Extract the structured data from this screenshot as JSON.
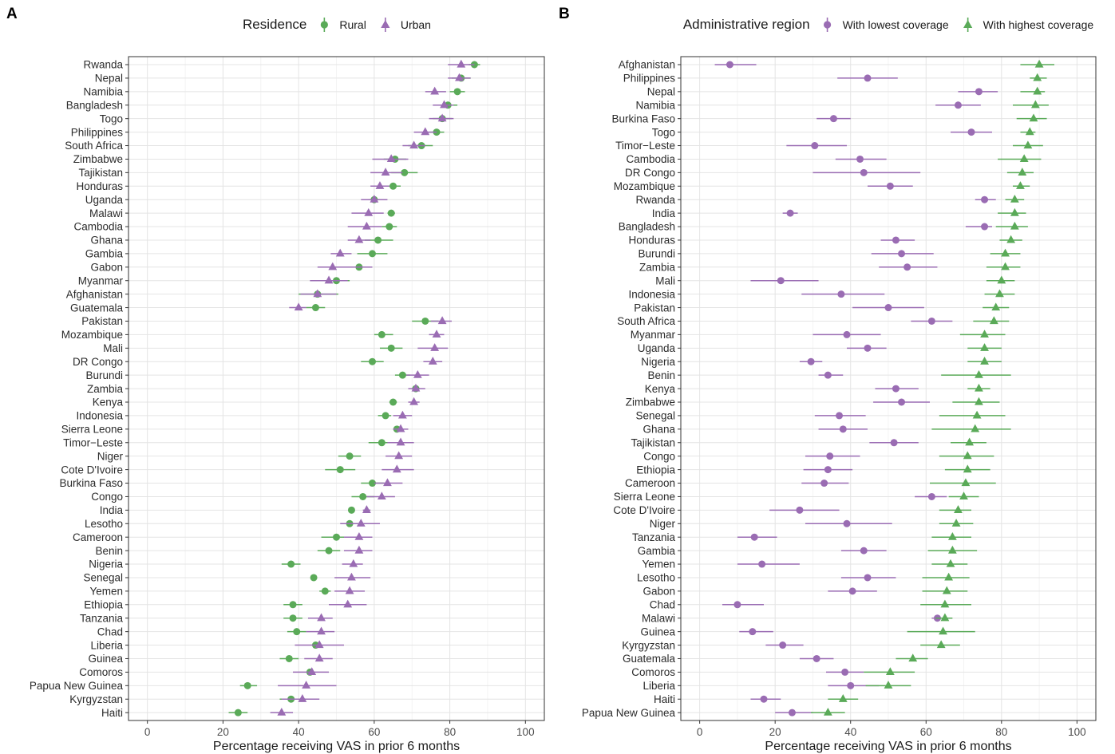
{
  "colors": {
    "green": "#5aaa58",
    "purple": "#9a6cb3"
  },
  "chart_data": [
    {
      "type": "scatter",
      "panel": "A",
      "legend_title": "Residence",
      "legend_placement": "top",
      "xlabel": "Percentage receiving VAS in prior 6 months",
      "xlim": [
        -5,
        105
      ],
      "xticks": [
        0,
        20,
        40,
        60,
        80,
        100
      ],
      "categories": [
        "Rwanda",
        "Nepal",
        "Namibia",
        "Bangladesh",
        "Togo",
        "Philippines",
        "South Africa",
        "Zimbabwe",
        "Tajikistan",
        "Honduras",
        "Uganda",
        "Malawi",
        "Cambodia",
        "Ghana",
        "Gambia",
        "Gabon",
        "Myanmar",
        "Afghanistan",
        "Guatemala",
        "Pakistan",
        "Mozambique",
        "Mali",
        "DR Congo",
        "Burundi",
        "Zambia",
        "Kenya",
        "Indonesia",
        "Sierra Leone",
        "Timor−Leste",
        "Niger",
        "Cote D'Ivoire",
        "Burkina Faso",
        "Congo",
        "India",
        "Lesotho",
        "Cameroon",
        "Benin",
        "Nigeria",
        "Senegal",
        "Yemen",
        "Ethiopia",
        "Tanzania",
        "Chad",
        "Liberia",
        "Guinea",
        "Comoros",
        "Papua New Guinea",
        "Kyrgyzstan",
        "Haiti"
      ],
      "series": [
        {
          "name": "Rural",
          "marker": "circle",
          "color": "#5aaa58",
          "values": [
            86.5,
            83,
            82,
            79.5,
            78,
            76.5,
            72.5,
            65.5,
            68,
            65,
            60,
            64.5,
            64,
            61,
            59.5,
            56,
            50,
            45,
            44.5,
            73.5,
            62,
            64.5,
            59.5,
            67.5,
            71,
            65,
            63,
            66,
            62,
            53.5,
            51,
            59.5,
            57,
            54,
            53.5,
            50,
            48,
            38,
            44,
            47,
            38.5,
            38.5,
            39.5,
            44.5,
            37.5,
            43,
            26.5,
            38,
            24
          ],
          "lo": [
            85,
            80.5,
            80,
            77,
            75.5,
            74.5,
            69,
            62.5,
            64.5,
            63,
            58.5,
            63.5,
            62,
            57.5,
            55.5,
            53,
            46.5,
            40,
            42,
            70,
            60,
            61.5,
            56.5,
            65.5,
            70,
            64,
            61,
            65,
            58.5,
            50.5,
            47,
            56.5,
            54,
            54,
            52.5,
            46,
            45,
            35.5,
            44,
            45.5,
            36,
            36,
            37,
            43.5,
            35,
            42,
            24.5,
            35,
            21.5
          ],
          "hi": [
            88,
            85.5,
            84,
            82,
            80.5,
            78.5,
            75.5,
            68.5,
            71.5,
            67,
            61.5,
            65.5,
            66,
            65,
            63.5,
            59,
            53.5,
            50.5,
            47,
            77,
            65,
            67.5,
            62.5,
            69.5,
            72,
            66,
            64.5,
            67,
            65.5,
            56.5,
            55,
            62.5,
            60,
            54,
            54.5,
            54,
            51,
            40.5,
            44,
            48.5,
            41,
            41,
            42,
            45.5,
            40,
            44,
            29,
            41,
            26.5
          ]
        },
        {
          "name": "Urban",
          "marker": "triangle",
          "color": "#9a6cb3",
          "values": [
            83,
            82.5,
            76,
            78.5,
            78,
            73.5,
            70.5,
            64.5,
            63,
            61.5,
            60,
            58.5,
            58,
            56,
            51,
            49,
            48,
            45,
            40,
            78,
            76.5,
            76,
            75.5,
            71.5,
            71,
            70.5,
            67.5,
            67,
            67,
            66.5,
            66,
            63.5,
            62,
            58,
            56.5,
            56,
            56,
            54.5,
            54,
            53.5,
            53,
            46,
            46,
            45.5,
            45.5,
            43.5,
            42,
            41,
            35.5
          ],
          "lo": [
            79.5,
            79.5,
            73.5,
            75.5,
            74.5,
            70.5,
            67.5,
            59.5,
            59,
            59,
            56.5,
            54,
            53,
            53,
            48.5,
            45,
            43,
            40.5,
            37.5,
            75,
            74.5,
            71.5,
            73,
            68.5,
            69,
            69,
            65,
            65,
            63.5,
            63,
            62,
            60,
            58,
            57,
            51,
            52,
            52,
            51.5,
            49.5,
            49.5,
            48,
            42.5,
            42,
            39,
            41.5,
            38.5,
            34.5,
            35.5,
            32.5
          ],
          "hi": [
            86.5,
            85.5,
            79,
            81,
            81,
            76.5,
            73.5,
            69,
            67.5,
            64,
            63.5,
            62.5,
            62,
            59,
            54,
            59.5,
            53,
            50,
            42,
            80.5,
            78.5,
            79.5,
            78,
            74.5,
            73.5,
            72,
            70,
            69,
            70.5,
            70,
            70.5,
            67.5,
            65.5,
            59,
            61.5,
            59.5,
            59.5,
            57,
            59,
            57.5,
            58,
            49,
            49.5,
            52,
            49,
            48,
            50,
            45.5,
            38.5
          ]
        }
      ]
    },
    {
      "type": "scatter",
      "panel": "B",
      "legend_title": "Administrative region",
      "legend_placement": "top",
      "xlabel": "Percentage receiving VAS in prior 6 months",
      "xlim": [
        -5,
        105
      ],
      "xticks": [
        0,
        20,
        40,
        60,
        80,
        100
      ],
      "categories": [
        "Afghanistan",
        "Philippines",
        "Nepal",
        "Namibia",
        "Burkina Faso",
        "Togo",
        "Timor−Leste",
        "Cambodia",
        "DR Congo",
        "Mozambique",
        "Rwanda",
        "India",
        "Bangladesh",
        "Honduras",
        "Burundi",
        "Zambia",
        "Mali",
        "Indonesia",
        "Pakistan",
        "South Africa",
        "Myanmar",
        "Uganda",
        "Nigeria",
        "Benin",
        "Kenya",
        "Zimbabwe",
        "Senegal",
        "Ghana",
        "Tajikistan",
        "Congo",
        "Ethiopia",
        "Cameroon",
        "Sierra Leone",
        "Cote D'Ivoire",
        "Niger",
        "Tanzania",
        "Gambia",
        "Yemen",
        "Lesotho",
        "Gabon",
        "Chad",
        "Malawi",
        "Guinea",
        "Kyrgyzstan",
        "Guatemala",
        "Comoros",
        "Liberia",
        "Haiti",
        "Papua New Guinea"
      ],
      "series": [
        {
          "name": "With lowest coverage",
          "marker": "circle",
          "color": "#9a6cb3",
          "values": [
            8,
            44.5,
            74,
            68.5,
            35.5,
            72,
            30.5,
            42.5,
            43.5,
            50.5,
            75.5,
            24,
            75.5,
            52,
            53.5,
            55,
            21.5,
            37.5,
            50,
            61.5,
            39,
            44.5,
            29.5,
            34,
            52,
            53.5,
            37,
            38,
            51.5,
            34.5,
            34,
            33,
            61.5,
            26.5,
            39,
            14.5,
            43.5,
            16.5,
            44.5,
            40.5,
            10,
            63,
            14,
            22,
            31,
            38.5,
            40,
            17,
            24.5
          ],
          "lo": [
            4,
            36.5,
            68.5,
            62.5,
            31,
            66.5,
            23,
            36,
            30,
            44.5,
            73,
            22,
            70.5,
            48,
            45.5,
            47.5,
            13.5,
            27,
            40.5,
            56,
            30,
            39,
            26.5,
            31.5,
            46.5,
            46,
            30.5,
            31.5,
            45,
            28,
            27.5,
            27,
            57,
            18.5,
            28,
            10,
            37.5,
            10,
            37.5,
            34,
            6,
            61.5,
            10.5,
            17.5,
            26.5,
            33.5,
            34,
            13.5,
            20
          ],
          "hi": [
            15,
            52.5,
            79,
            74.5,
            40,
            77.5,
            39,
            49.5,
            58.5,
            56.5,
            78.5,
            26,
            77.5,
            57,
            62,
            63,
            31.5,
            49,
            59.5,
            67,
            48,
            49.5,
            32.5,
            38,
            58,
            61,
            44,
            44.5,
            58,
            42.5,
            40.5,
            39.5,
            65.5,
            37,
            51,
            20.5,
            49.5,
            26.5,
            52,
            47,
            17,
            64.5,
            19.5,
            27.5,
            35.5,
            43.5,
            47.5,
            21.5,
            30
          ]
        },
        {
          "name": "With highest coverage",
          "marker": "triangle",
          "color": "#5aaa58",
          "values": [
            90,
            89.5,
            89.5,
            89,
            88.5,
            87.5,
            87,
            86,
            85.5,
            85,
            83.5,
            83.5,
            83.5,
            82.5,
            81,
            81,
            80,
            79.5,
            78.5,
            78,
            75.5,
            75.5,
            75.5,
            74,
            74,
            74,
            73.5,
            73,
            71.5,
            71,
            71,
            70.5,
            70,
            68.5,
            68,
            67,
            67,
            66.5,
            66,
            65.5,
            65,
            65,
            64.5,
            64,
            56.5,
            50.5,
            50,
            38,
            34
          ],
          "lo": [
            85,
            87.5,
            85,
            83,
            84,
            85,
            83,
            79,
            81.5,
            83,
            81,
            79,
            78.5,
            79.5,
            77,
            76,
            76,
            75.5,
            75,
            72.5,
            69,
            71,
            71,
            64,
            71,
            67,
            63.5,
            61.5,
            66.5,
            63.5,
            65,
            61,
            66,
            63.5,
            63.5,
            61.5,
            60.5,
            61.5,
            59,
            59,
            58.5,
            62.5,
            55,
            58.5,
            52,
            43.5,
            44,
            34,
            29.5
          ],
          "hi": [
            94,
            92,
            91.5,
            92.5,
            92,
            89,
            91,
            90.5,
            88.5,
            87.5,
            86,
            86.5,
            87,
            85.5,
            85,
            85,
            83.5,
            83.5,
            82,
            82,
            81,
            80,
            80,
            82.5,
            77,
            79.5,
            81,
            82.5,
            76,
            78,
            77,
            78.5,
            74,
            72,
            72.5,
            72,
            73.5,
            71,
            71.5,
            71,
            72,
            67,
            73,
            69,
            60.5,
            57,
            56,
            42,
            38.5
          ]
        }
      ]
    }
  ]
}
